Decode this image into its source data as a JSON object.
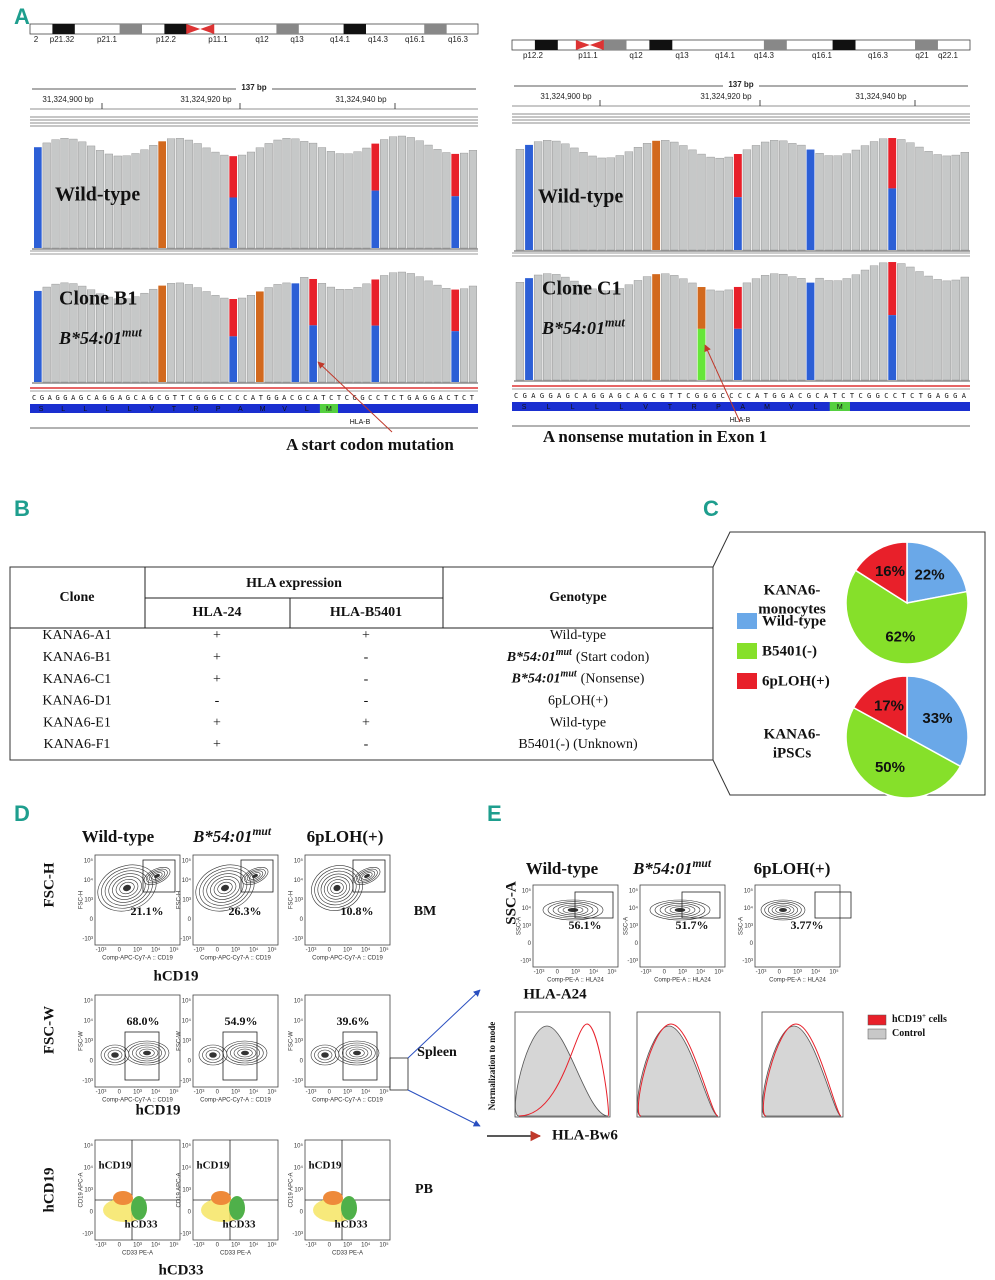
{
  "panel_labels": [
    "A",
    "B",
    "C",
    "D",
    "E"
  ],
  "panel_a": {
    "left": {
      "ideogram_bands": [
        "2",
        "p21.32",
        "p21.1",
        "p12.2",
        "p11.1",
        "q12",
        "q13",
        "q14.1",
        "q14.3",
        "q16.1",
        "q16.3"
      ],
      "span": "137 bp",
      "positions": [
        "31,324,900 bp",
        "31,324,920 bp",
        "31,324,940 bp"
      ],
      "track_1": "Wild-type",
      "track_2": "Clone B1",
      "allele": {
        "base": "B*54:01",
        "sup": "mut"
      },
      "sequence": "CGAGGAGCAGGAGCAGCGTTCGGGCCCCATGGACGCATCTCGGCCTCTGAGGACTCT",
      "amino_acids": [
        "S",
        "L",
        "L",
        "L",
        "L",
        "V",
        "T",
        "R",
        "P",
        "A",
        "M",
        "V",
        "L",
        "M"
      ],
      "gene": "HLA-B",
      "annotation": "A start codon mutation"
    },
    "right": {
      "ideogram_bands": [
        "p12.2",
        "p11.1",
        "q12",
        "q13",
        "q14.1",
        "q14.3",
        "q16.1",
        "q16.3",
        "q21",
        "q22.1"
      ],
      "span": "137 bp",
      "positions": [
        "31,324,900 bp",
        "31,324,920 bp",
        "31,324,940 bp"
      ],
      "track_1": "Wild-type",
      "track_2": "Clone C1",
      "allele": {
        "base": "B*54:01",
        "sup": "mut"
      },
      "sequence": "CGAGGAGCAGGAGCAGCGTTCGGGCCCCATGGACGCATCTCGGCCTCTGAGGA",
      "amino_acids": [
        "S",
        "L",
        "L",
        "L",
        "L",
        "V",
        "T",
        "R",
        "P",
        "A",
        "M",
        "V",
        "L",
        "M"
      ],
      "gene": "HLA-B",
      "annotation": "A nonsense mutation in Exon 1"
    }
  },
  "table": {
    "header": {
      "clone": "Clone",
      "group": "HLA expression",
      "cols": [
        "HLA-24",
        "HLA-B5401"
      ],
      "genotype": "Genotype"
    },
    "rows": [
      {
        "clone": "KANA6-A1",
        "clone_color": "#2c5fd6",
        "hla24": "+",
        "b5401": "+",
        "genotype": "Wild-type",
        "color": "#2c5fd6"
      },
      {
        "clone": "KANA6-B1",
        "clone_color": "#5ccc28",
        "hla24": "+",
        "b5401": "-",
        "genotype": {
          "base": "B*54:01",
          "sup": "mut",
          "note": "(Start codon)"
        },
        "color": "#5ccc28"
      },
      {
        "clone": "KANA6-C1",
        "clone_color": "#5ccc28",
        "hla24": "+",
        "b5401": "-",
        "genotype": {
          "base": "B*54:01",
          "sup": "mut",
          "note": "(Nonsense)"
        },
        "color": "#5ccc28"
      },
      {
        "clone": "KANA6-D1",
        "clone_color": "#b22222",
        "hla24": "-",
        "b5401": "-",
        "genotype": "6pLOH(+)",
        "color": "#b22222"
      },
      {
        "clone": "KANA6-E1",
        "clone_color": "#2c5fd6",
        "hla24": "+",
        "b5401": "+",
        "genotype": "Wild-type",
        "color": "#2c5fd6"
      },
      {
        "clone": "KANA6-F1",
        "clone_color": "#111111",
        "hla24": "+",
        "b5401": "-",
        "genotype": "B5401(-) (Unknown)",
        "color": "#5ccc28"
      }
    ]
  },
  "chart_data": [
    {
      "type": "pie",
      "title": [
        "KANA6-",
        "monocytes"
      ],
      "categories": [
        "Wild-type",
        "B5401(-)",
        "6pLOH(+)"
      ],
      "colors": [
        "#6aa8e8",
        "#86e02a",
        "#e8202a"
      ],
      "values": [
        22,
        62,
        16
      ],
      "value_labels": [
        "22%",
        "62%",
        "16%"
      ]
    },
    {
      "type": "pie",
      "title": [
        "KANA6-",
        "iPSCs"
      ],
      "categories": [
        "Wild-type",
        "B5401(-)",
        "6pLOH(+)"
      ],
      "colors": [
        "#6aa8e8",
        "#86e02a",
        "#e8202a"
      ],
      "values": [
        33,
        50,
        17
      ],
      "value_labels": [
        "33%",
        "50%",
        "17%"
      ]
    }
  ],
  "flow_ticks": [
    "10⁵",
    "10⁴",
    "10³",
    "0",
    "-10³"
  ],
  "panel_d": {
    "headers": [
      "Wild-type",
      {
        "base": "B*54:01",
        "sup": "mut"
      },
      "6pLOH(+)"
    ],
    "bm": {
      "y_label": "FSC-H",
      "x_label": "hCD19",
      "tissue": "BM",
      "gates": [
        "21.1%",
        "26.3%",
        "10.8%"
      ],
      "x_axis": "Comp-APC-Cy7-A :: CD19",
      "y_axis": "FSC-H"
    },
    "spleen": {
      "y_label": "FSC-W",
      "x_label": "hCD19",
      "tissue": "Spleen",
      "gates": [
        "68.0%",
        "54.9%",
        "39.6%"
      ],
      "x_axis": "Comp-APC-Cy7-A :: CD19",
      "y_axis": "FSC-W"
    },
    "pb": {
      "y_label": "hCD19",
      "x_label": "hCD33",
      "tissue": "PB",
      "quadrants": [
        "hCD19",
        "hCD33"
      ],
      "x_axis": "CD33 PE-A",
      "y_axis": "CD19 APC-A"
    }
  },
  "panel_e": {
    "headers": [
      "Wild-type",
      {
        "base": "B*54:01",
        "sup": "mut"
      },
      "6pLOH(+)"
    ],
    "y_label": "SSC-A",
    "x_label": "HLA-A24",
    "gates": [
      "56.1%",
      "51.7%",
      "3.77%"
    ],
    "x_axis": "Comp-PE-A :: HLA24",
    "y_axis": "SSC-A",
    "histogram": {
      "y_label": "Normalization to mode",
      "x_label": "HLA-Bw6",
      "legend": [
        {
          "base": "hCD19",
          "sup": "+",
          "rest": " cells",
          "color": "#e8202a"
        },
        {
          "text": "Control",
          "color": "#c8c8c8"
        }
      ]
    }
  }
}
